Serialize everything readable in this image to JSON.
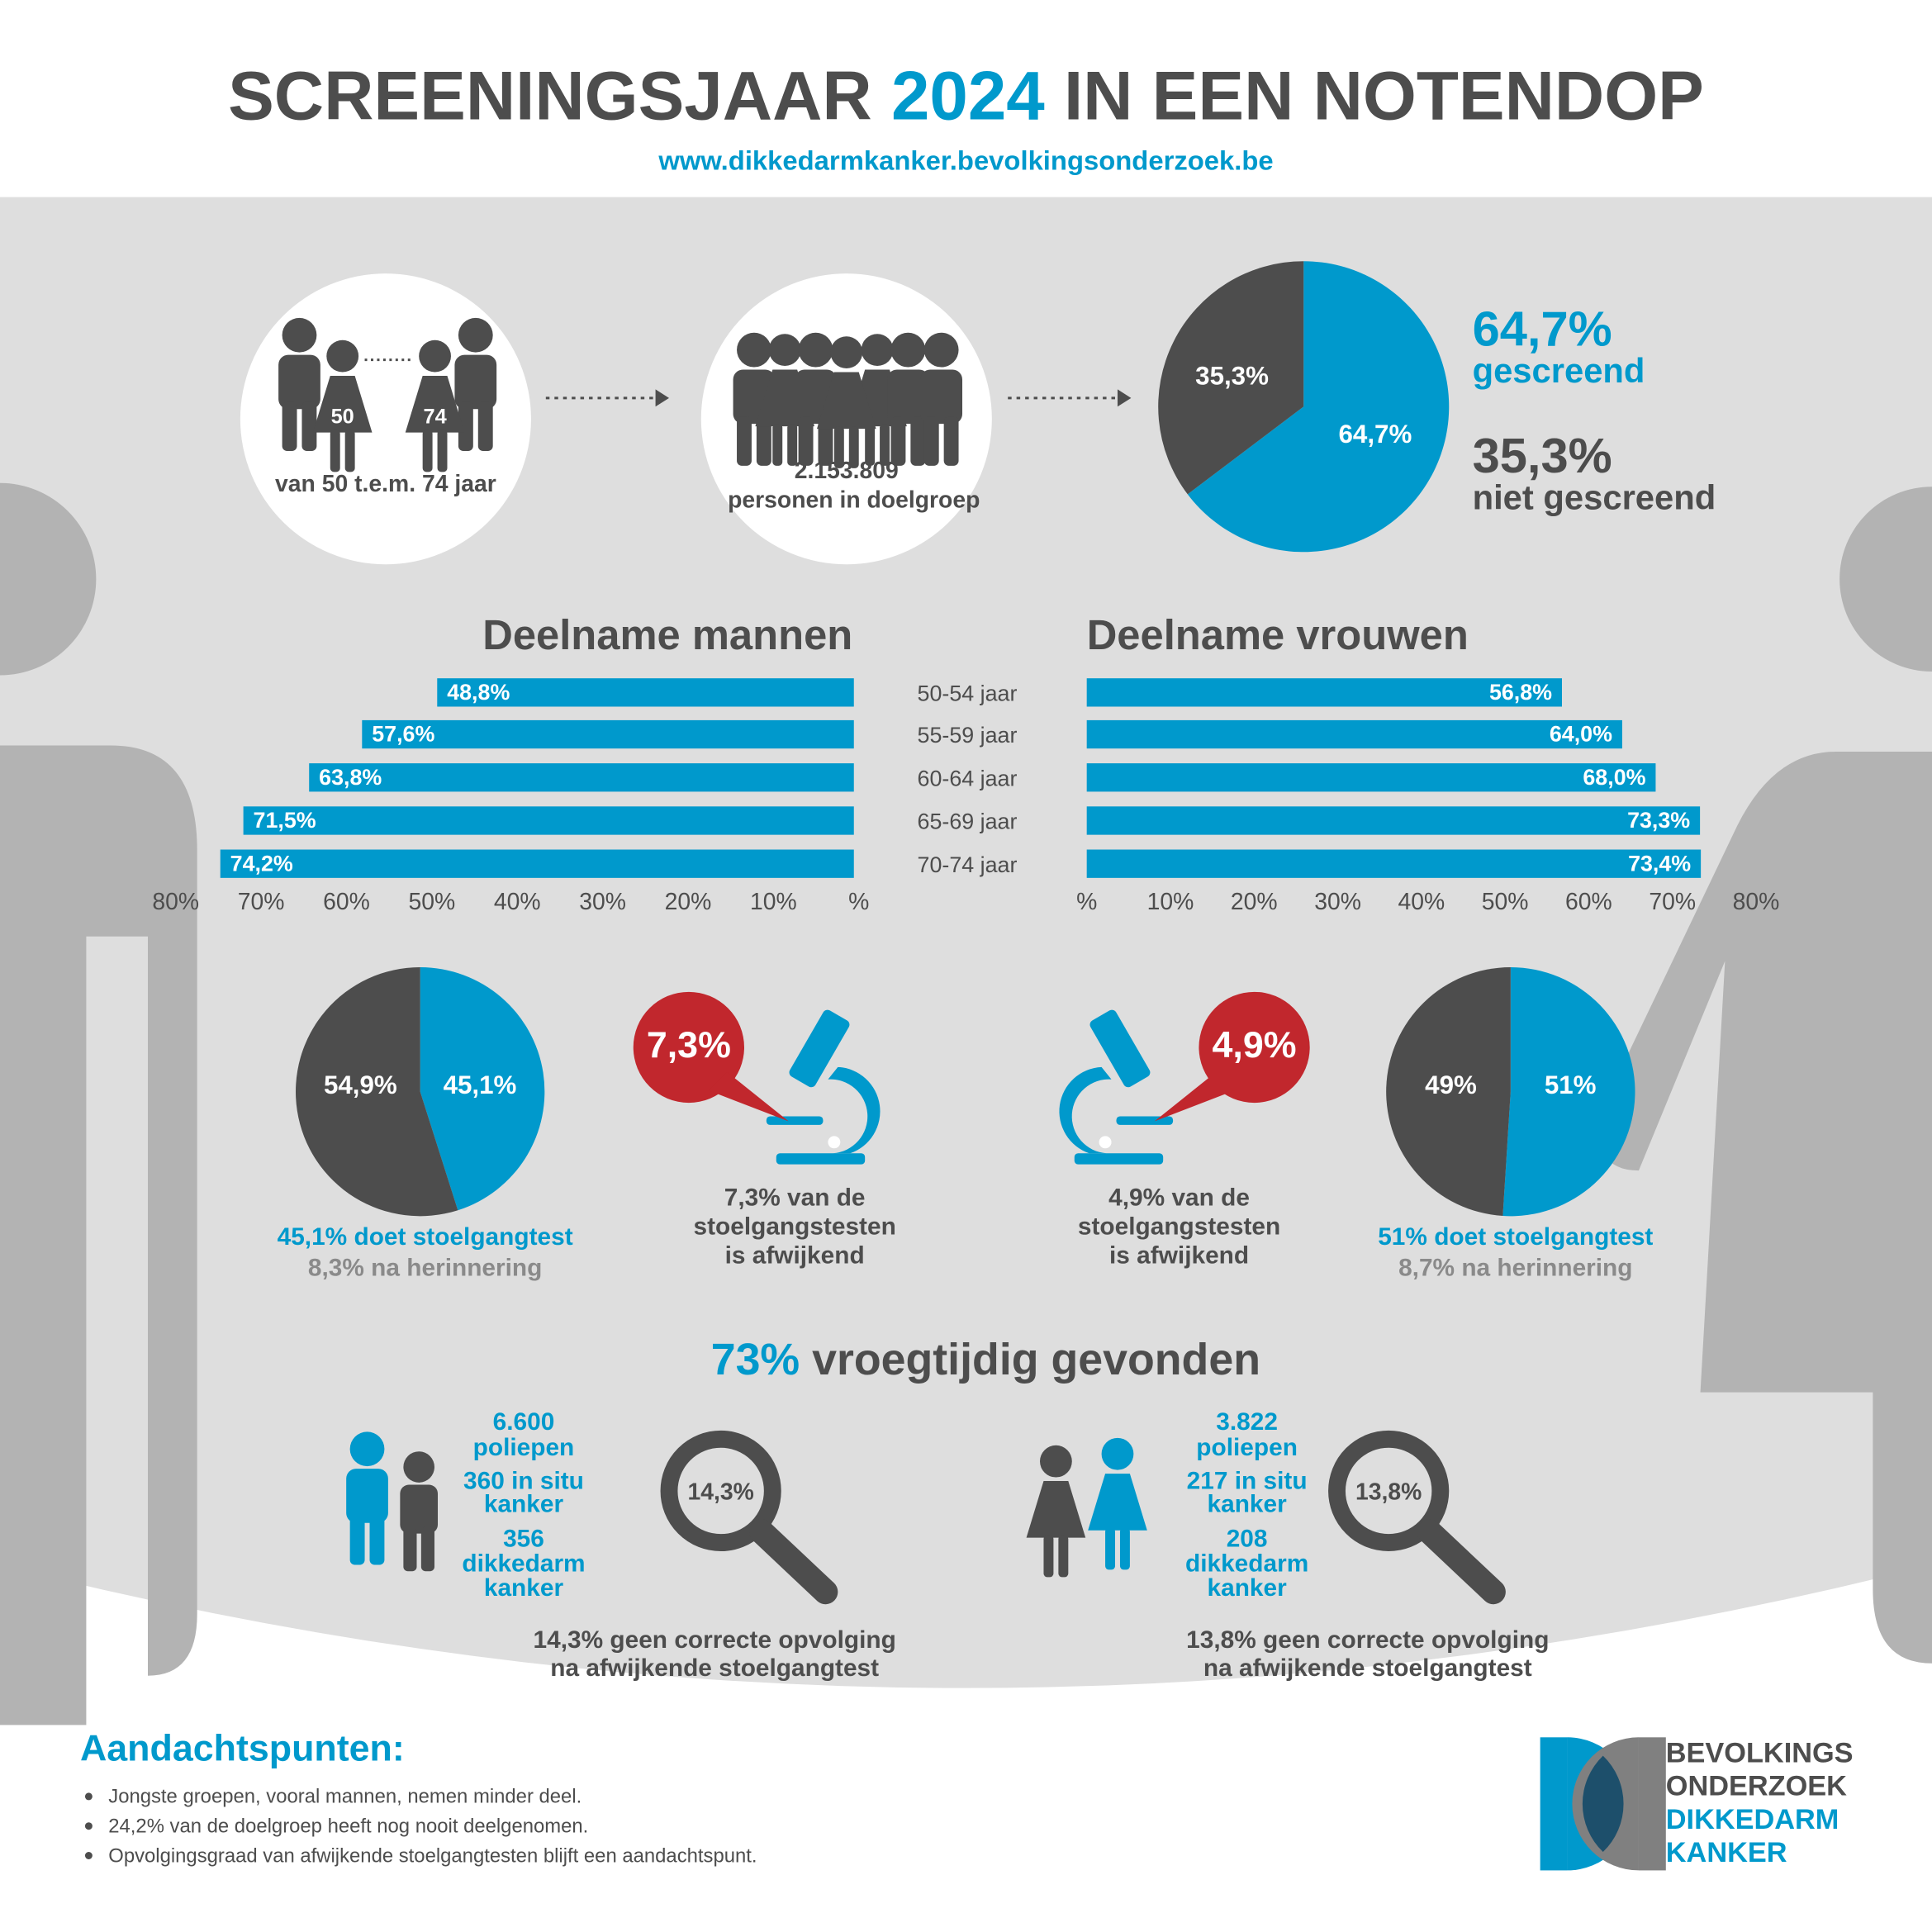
{
  "header": {
    "title_parts": [
      "SCREENINGSJAAR",
      "2024",
      "IN EEN NOTENDOP"
    ],
    "url": "www.dikkedarmkanker.bevolkingsonderzoek.be"
  },
  "target": {
    "age_from": "50",
    "age_to": "74",
    "age_label": "van 50 t.e.m. 74 jaar",
    "count": "2.153.809",
    "count_label": "personen in doelgroep"
  },
  "chart_data": [
    {
      "type": "pie",
      "categories": [
        "gescreend",
        "niet gescreend"
      ],
      "values": [
        64.7,
        35.3
      ],
      "value_labels": [
        "64,7%",
        "35,3%"
      ],
      "colors": [
        "#0099cc",
        "#4d4d4d"
      ]
    },
    {
      "type": "bar",
      "categories": [
        "50-54 jaar",
        "55-59 jaar",
        "60-64 jaar",
        "65-69 jaar",
        "70-74 jaar"
      ],
      "series": [
        {
          "name": "Deelname mannen",
          "color": "#0099cc",
          "values": [
            48.8,
            57.6,
            63.8,
            71.5,
            74.2
          ],
          "value_labels": [
            "48,8%",
            "57,6%",
            "63,8%",
            "71,5%",
            "74,2%"
          ]
        },
        {
          "name": "Deelname vrouwen",
          "color": "#0099cc",
          "values": [
            56.8,
            64.0,
            68.0,
            73.3,
            73.4
          ],
          "value_labels": [
            "56,8%",
            "64,0%",
            "68,0%",
            "73,3%",
            "73,4%"
          ]
        }
      ],
      "xlim": [
        0,
        80
      ],
      "xticks": [
        {
          "value": 0,
          "label": "%"
        },
        {
          "value": 10,
          "label": "10%"
        },
        {
          "value": 20,
          "label": "20%"
        },
        {
          "value": 30,
          "label": "30%"
        },
        {
          "value": 40,
          "label": "40%"
        },
        {
          "value": 50,
          "label": "50%"
        },
        {
          "value": 60,
          "label": "60%"
        },
        {
          "value": 70,
          "label": "70%"
        },
        {
          "value": 80,
          "label": "80%"
        }
      ]
    },
    {
      "type": "pie",
      "values": [
        45.1,
        54.9
      ],
      "value_labels": [
        "45,1%",
        "54,9%"
      ],
      "colors": [
        "#0099cc",
        "#4d4d4d"
      ],
      "caption": "45,1% doet stoelgangtest",
      "subcaption": "8,3% na herinnering"
    },
    {
      "type": "pie",
      "values": [
        51,
        49
      ],
      "value_labels": [
        "51%",
        "49%"
      ],
      "colors": [
        "#0099cc",
        "#4d4d4d"
      ],
      "caption": "51% doet stoelgangtest",
      "subcaption": "8,7% na herinnering"
    }
  ],
  "abnormal": {
    "men": {
      "badge": "7,3%",
      "text": [
        "7,3% van de",
        "stoelgangstesten",
        "is afwijkend"
      ]
    },
    "women": {
      "badge": "4,9%",
      "text": [
        "4,9% van de",
        "stoelgangstesten",
        "is afwijkend"
      ]
    }
  },
  "early": {
    "value": "73%",
    "label": "vroegtijdig gevonden"
  },
  "findings": {
    "men": {
      "lines": [
        "6.600",
        "poliepen",
        "360 in situ",
        "kanker",
        "356",
        "dikkedarm",
        "kanker"
      ],
      "magnifier": "14,3%",
      "note": [
        "14,3% geen correcte opvolging",
        "na afwijkende stoelgangtest"
      ]
    },
    "women": {
      "lines": [
        "3.822",
        "poliepen",
        "217 in situ",
        "kanker",
        "208",
        "dikkedarm",
        "kanker"
      ],
      "magnifier": "13,8%",
      "note": [
        "13,8% geen correcte opvolging",
        "na afwijkende stoelgangtest"
      ]
    }
  },
  "footer": {
    "title": "Aandachtspunten:",
    "bullets": [
      "Jongste groepen, vooral mannen, nemen minder deel.",
      "24,2% van de doelgroep heeft nog nooit deelgenomen.",
      "Opvolgingsgraad van afwijkende stoelgangtesten blijft een aandachtspunt."
    ],
    "logo": [
      "BEVOLKINGS",
      "ONDERZOEK",
      "DIKKEDARM",
      "KANKER"
    ]
  }
}
